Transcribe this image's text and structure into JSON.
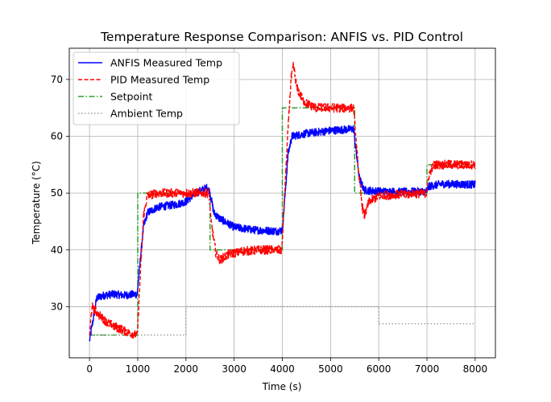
{
  "chart_data": {
    "type": "line",
    "title": "Temperature Response Comparison: ANFIS vs. PID Control",
    "xlabel": "Time (s)",
    "ylabel": "Temperature (°C)",
    "xlim": [
      -420,
      8420
    ],
    "ylim": [
      21,
      75.5
    ],
    "xticks": [
      0,
      1000,
      2000,
      3000,
      4000,
      5000,
      6000,
      7000,
      8000
    ],
    "yticks": [
      30,
      40,
      50,
      60,
      70
    ],
    "grid": true,
    "legend_position": "top-left",
    "series": [
      {
        "name": "ANFIS Measured Temp",
        "color": "#0000ff",
        "style": "solid",
        "noise": 0.7,
        "points": [
          [
            0,
            24
          ],
          [
            60,
            27
          ],
          [
            150,
            31.5
          ],
          [
            300,
            32
          ],
          [
            500,
            32.2
          ],
          [
            700,
            32
          ],
          [
            990,
            32.2
          ],
          [
            1050,
            38
          ],
          [
            1120,
            44
          ],
          [
            1200,
            46.5
          ],
          [
            1400,
            47.5
          ],
          [
            1800,
            48
          ],
          [
            2000,
            48.5
          ],
          [
            2200,
            50
          ],
          [
            2450,
            51
          ],
          [
            2500,
            50
          ],
          [
            2580,
            46.5
          ],
          [
            2700,
            45.5
          ],
          [
            3000,
            44
          ],
          [
            3400,
            43.5
          ],
          [
            3900,
            43.3
          ],
          [
            4000,
            43.5
          ],
          [
            4060,
            50
          ],
          [
            4120,
            57
          ],
          [
            4200,
            60
          ],
          [
            4500,
            60.5
          ],
          [
            5000,
            61
          ],
          [
            5480,
            61.3
          ],
          [
            5520,
            58
          ],
          [
            5600,
            52.5
          ],
          [
            5700,
            50.5
          ],
          [
            6000,
            50.3
          ],
          [
            6500,
            50.2
          ],
          [
            6990,
            50.3
          ],
          [
            7050,
            51.2
          ],
          [
            7300,
            51.6
          ],
          [
            8000,
            51.5
          ]
        ]
      },
      {
        "name": "PID Measured Temp",
        "color": "#ff0000",
        "style": "dashed",
        "noise": 0.8,
        "points": [
          [
            0,
            25
          ],
          [
            50,
            30
          ],
          [
            100,
            29.5
          ],
          [
            200,
            28.5
          ],
          [
            400,
            27
          ],
          [
            600,
            26.2
          ],
          [
            800,
            25.5
          ],
          [
            990,
            25
          ],
          [
            1050,
            35
          ],
          [
            1120,
            46
          ],
          [
            1200,
            49.5
          ],
          [
            1400,
            50
          ],
          [
            2000,
            50
          ],
          [
            2480,
            50
          ],
          [
            2520,
            45
          ],
          [
            2620,
            39.5
          ],
          [
            2700,
            38.2
          ],
          [
            2900,
            39.3
          ],
          [
            3200,
            39.8
          ],
          [
            3600,
            40
          ],
          [
            3990,
            40
          ],
          [
            4060,
            52
          ],
          [
            4130,
            63
          ],
          [
            4180,
            70
          ],
          [
            4230,
            72.5
          ],
          [
            4300,
            68.5
          ],
          [
            4450,
            66
          ],
          [
            4700,
            65
          ],
          [
            5000,
            65
          ],
          [
            5480,
            65
          ],
          [
            5530,
            59
          ],
          [
            5600,
            52
          ],
          [
            5660,
            47.5
          ],
          [
            5700,
            46
          ],
          [
            5800,
            48.5
          ],
          [
            6000,
            49.5
          ],
          [
            6500,
            49.8
          ],
          [
            6990,
            50
          ],
          [
            7050,
            53.5
          ],
          [
            7150,
            55
          ],
          [
            7500,
            55
          ],
          [
            8000,
            55
          ]
        ]
      },
      {
        "name": "Setpoint",
        "color": "#2ca02c",
        "style": "dashdot",
        "noise": 0,
        "points": [
          [
            0,
            25
          ],
          [
            1000,
            25
          ],
          [
            1000,
            50
          ],
          [
            2500,
            50
          ],
          [
            2500,
            40
          ],
          [
            4000,
            40
          ],
          [
            4000,
            65
          ],
          [
            5500,
            65
          ],
          [
            5500,
            50
          ],
          [
            7000,
            50
          ],
          [
            7000,
            55
          ],
          [
            8000,
            55
          ]
        ]
      },
      {
        "name": "Ambient Temp",
        "color": "#a0a0a0",
        "style": "dotted",
        "noise": 0,
        "points": [
          [
            0,
            25
          ],
          [
            2000,
            25
          ],
          [
            2000,
            30
          ],
          [
            6000,
            30
          ],
          [
            6000,
            27
          ],
          [
            8000,
            27
          ]
        ]
      }
    ]
  }
}
